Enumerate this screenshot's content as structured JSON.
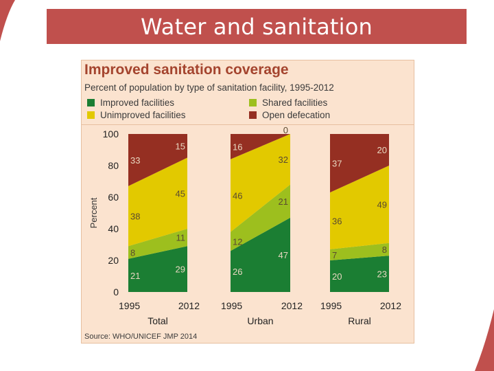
{
  "slide": {
    "title": "Water and sanitation"
  },
  "colors": {
    "title_bar": "#c0504d",
    "panel_bg": "#fbe3cf",
    "improved": "#1b7e33",
    "shared": "#9dbf1e",
    "unimproved": "#e2c900",
    "open": "#952f22",
    "chart_title": "#a4442e"
  },
  "chart_data": {
    "type": "area",
    "title": "Improved sanitation coverage",
    "subtitle": "Percent of population by type of sanitation facility, 1995-2012",
    "ylabel": "Percent",
    "ylim": [
      0,
      100
    ],
    "yticks": [
      "0",
      "20",
      "40",
      "60",
      "80",
      "100"
    ],
    "legend": [
      {
        "key": "improved",
        "label": "Improved facilities"
      },
      {
        "key": "shared",
        "label": "Shared facilities"
      },
      {
        "key": "unimproved",
        "label": "Unimproved facilities"
      },
      {
        "key": "open",
        "label": "Open defecation"
      }
    ],
    "panels": [
      {
        "name": "Total",
        "x": [
          "1995",
          "2012"
        ],
        "series": {
          "improved": [
            21,
            29
          ],
          "shared": [
            8,
            11
          ],
          "unimproved": [
            38,
            45
          ],
          "open": [
            33,
            15
          ]
        }
      },
      {
        "name": "Urban",
        "x": [
          "1995",
          "2012"
        ],
        "series": {
          "improved": [
            26,
            47
          ],
          "shared": [
            12,
            21
          ],
          "unimproved": [
            46,
            32
          ],
          "open": [
            16,
            0
          ]
        },
        "labels_2012": {
          "open": "0"
        }
      },
      {
        "name": "Rural",
        "x": [
          "1995",
          "2012"
        ],
        "series": {
          "improved": [
            20,
            23
          ],
          "shared": [
            7,
            8
          ],
          "unimproved": [
            36,
            49
          ],
          "open": [
            37,
            20
          ]
        }
      }
    ],
    "source": "Source:  WHO/UNICEF JMP 2014"
  }
}
